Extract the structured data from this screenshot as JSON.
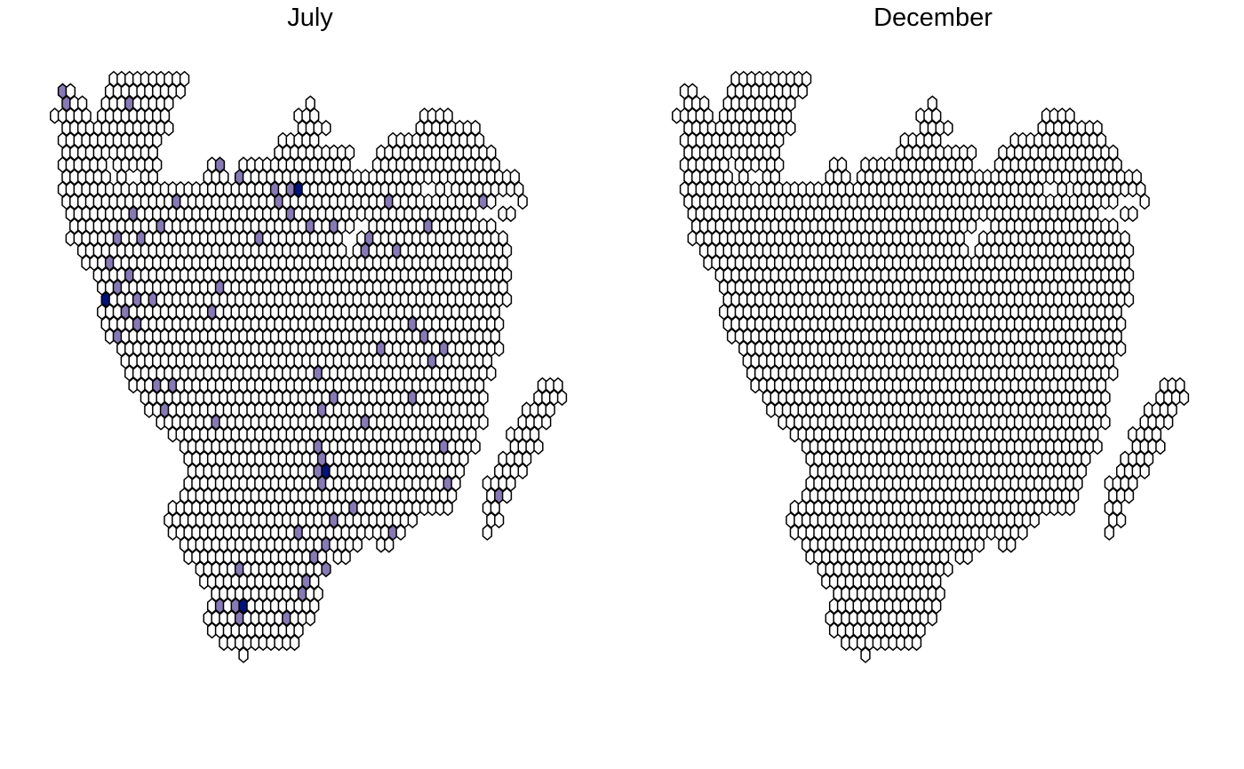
{
  "chart_data": [
    {
      "type": "hexbin-map",
      "title": "July",
      "grid": false,
      "legend": "none",
      "colors": {
        "empty": "#ffffff",
        "low": "#8679b4",
        "high": "#00137a",
        "stroke": "#000000"
      },
      "highlighted_cells_low_count": 80,
      "highlighted_cells_high_count": 4
    },
    {
      "type": "hexbin-map",
      "title": "December",
      "grid": false,
      "legend": "none",
      "colors": {
        "empty": "#ffffff",
        "stroke": "#000000"
      },
      "highlighted_cells_low_count": 0,
      "highlighted_cells_high_count": 0
    }
  ]
}
